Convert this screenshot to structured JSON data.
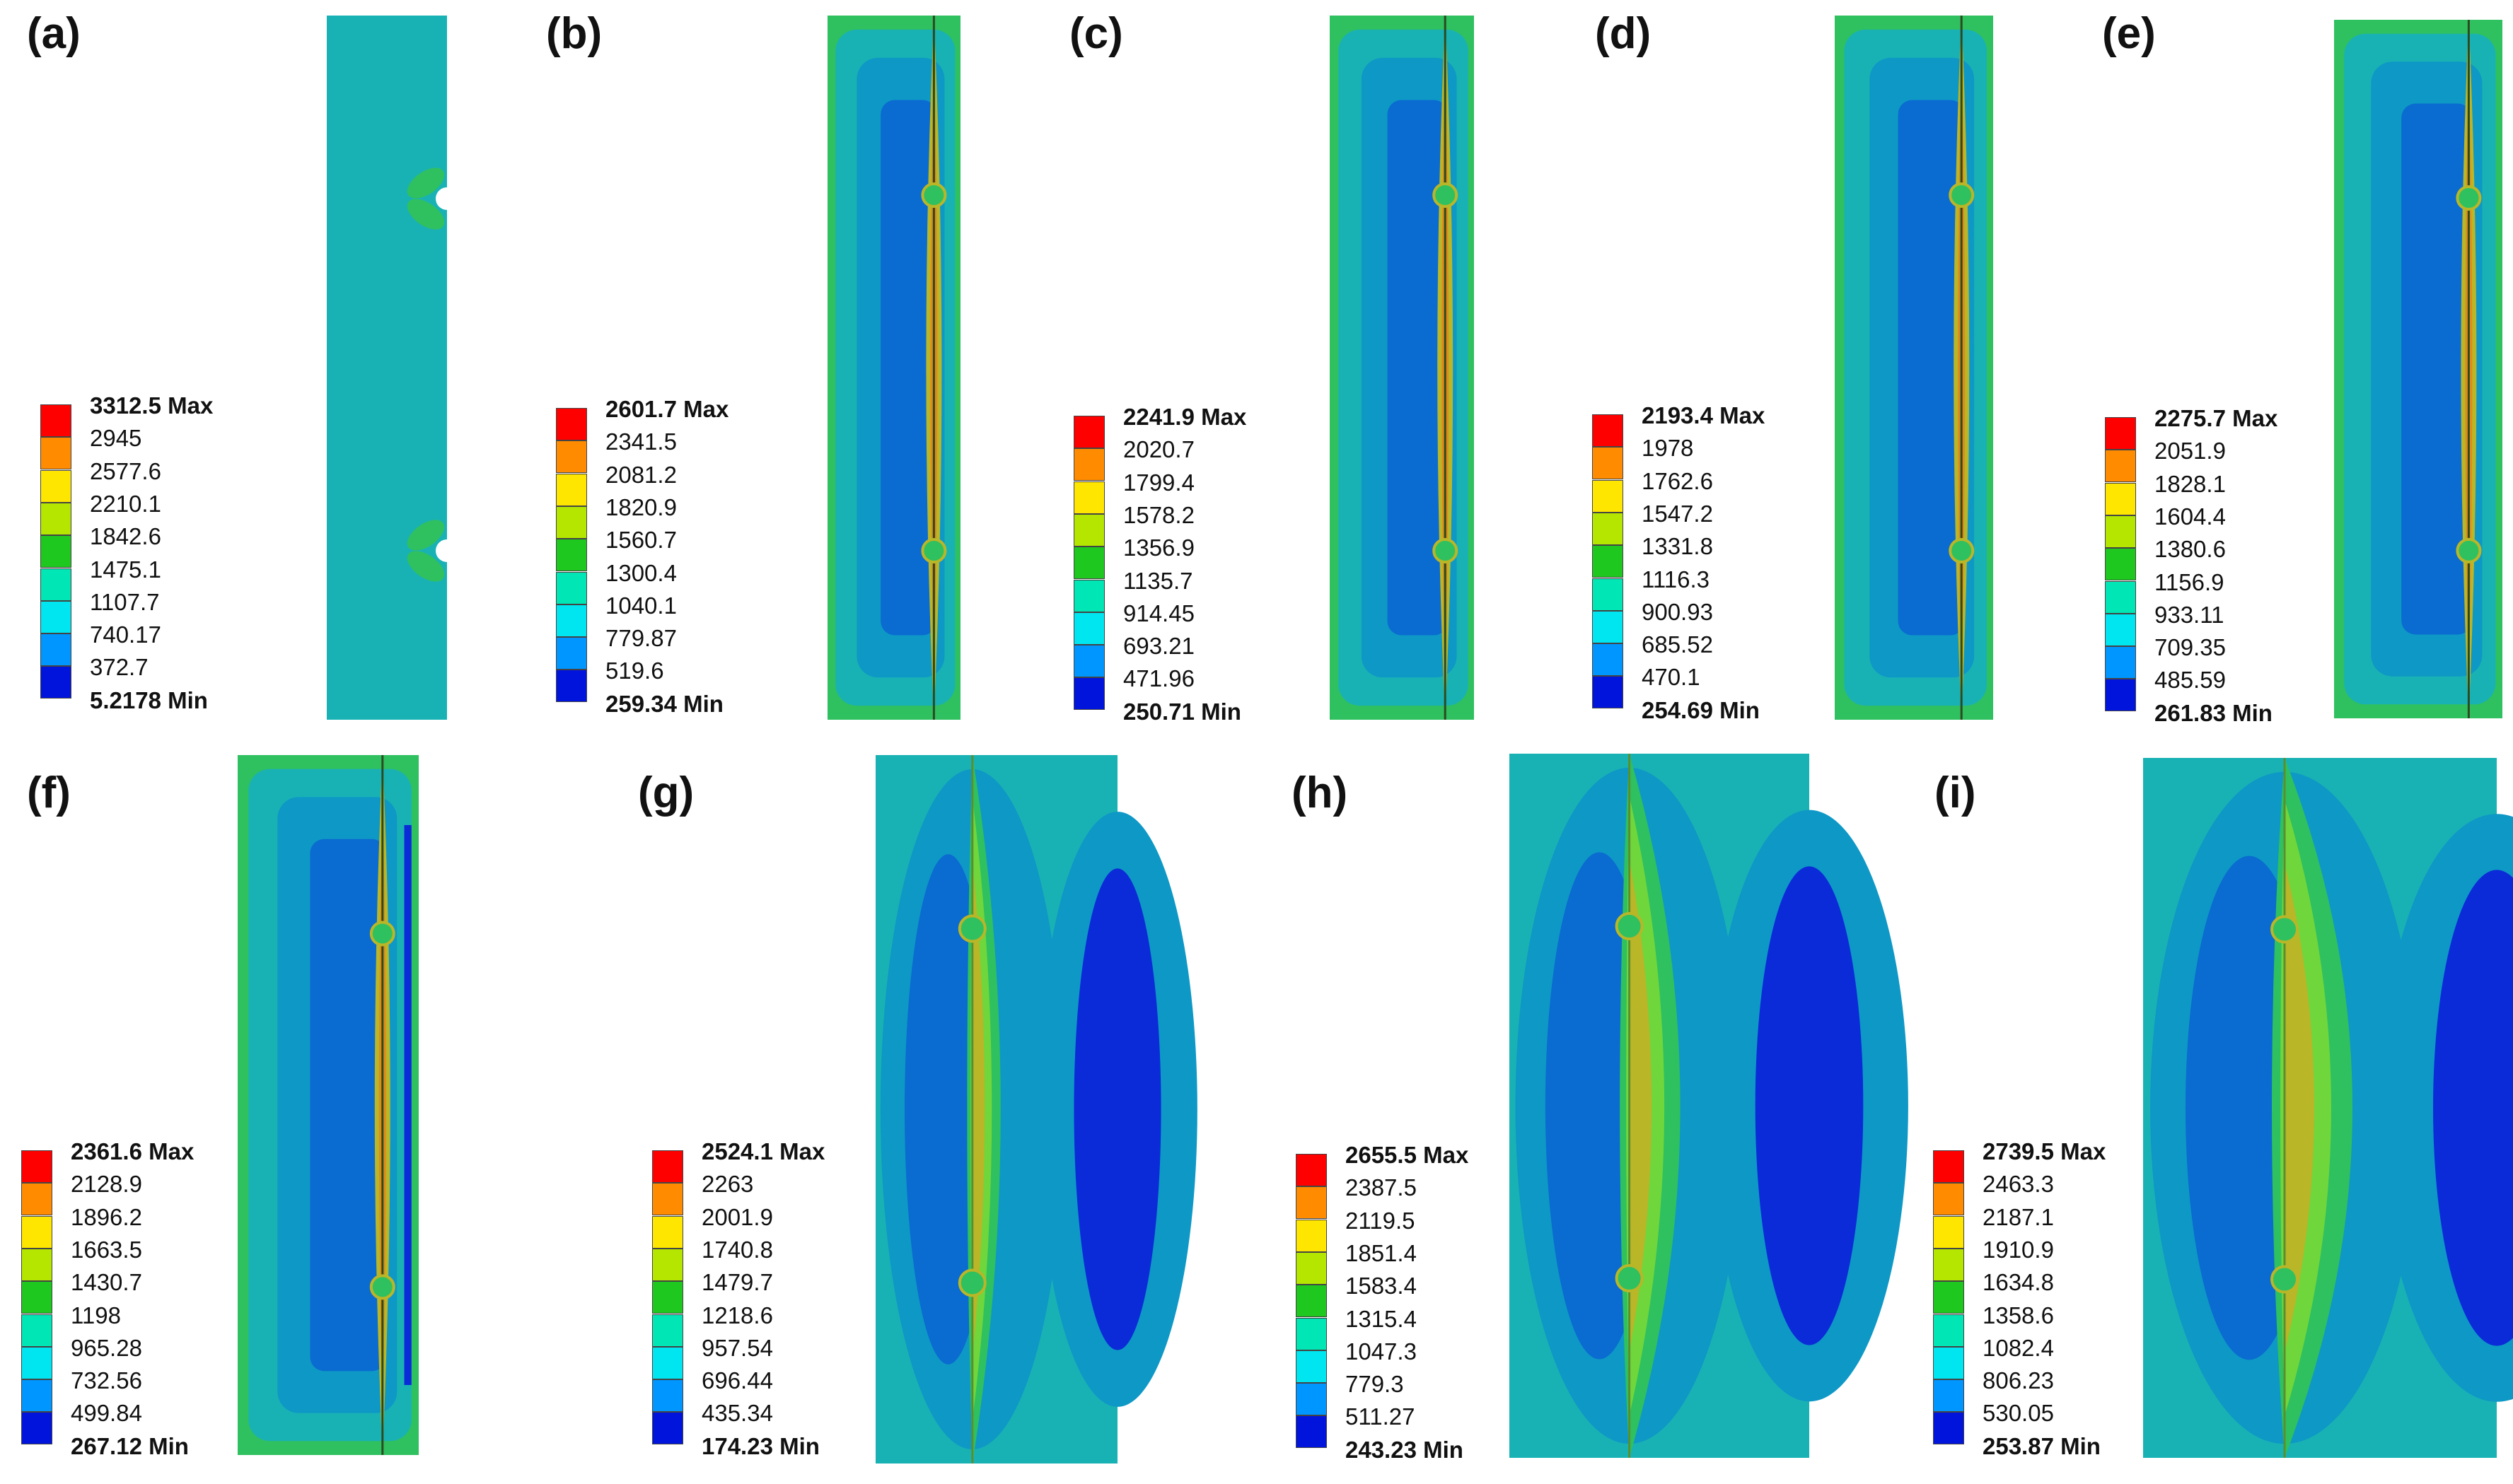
{
  "figure_title": "",
  "legend_colors": [
    "#ff0000",
    "#ff8c00",
    "#ffe600",
    "#b4e600",
    "#1ec81e",
    "#00e6b4",
    "#00e6f0",
    "#0096ff",
    "#0014dc"
  ],
  "plate_colors": {
    "base": "#19b2b4",
    "mid": "#0e98c6",
    "deep": "#0a6bd0",
    "dark": "#0b2bd8",
    "green": "#2fc060",
    "lightgreen": "#6fd63c",
    "olive": "#b9b628",
    "orange": "#e08a1a",
    "line": "#5a8f30"
  },
  "panels": [
    {
      "id": "a",
      "label": "(a)",
      "max_value": "3312.5",
      "max_suffix": "Max",
      "min_value": "5.2178",
      "min_suffix": "Min",
      "levels": [
        "2945",
        "2577.6",
        "2210.1",
        "1842.6",
        "1475.1",
        "1107.7",
        "740.17",
        "372.7"
      ]
    },
    {
      "id": "b",
      "label": "(b)",
      "max_value": "2601.7",
      "max_suffix": "Max",
      "min_value": "259.34",
      "min_suffix": "Min",
      "levels": [
        "2341.5",
        "2081.2",
        "1820.9",
        "1560.7",
        "1300.4",
        "1040.1",
        "779.87",
        "519.6"
      ]
    },
    {
      "id": "c",
      "label": "(c)",
      "max_value": "2241.9",
      "max_suffix": "Max",
      "min_value": "250.71",
      "min_suffix": "Min",
      "levels": [
        "2020.7",
        "1799.4",
        "1578.2",
        "1356.9",
        "1135.7",
        "914.45",
        "693.21",
        "471.96"
      ]
    },
    {
      "id": "d",
      "label": "(d)",
      "max_value": "2193.4",
      "max_suffix": "Max",
      "min_value": "254.69",
      "min_suffix": "Min",
      "levels": [
        "1978",
        "1762.6",
        "1547.2",
        "1331.8",
        "1116.3",
        "900.93",
        "685.52",
        "470.1"
      ]
    },
    {
      "id": "e",
      "label": "(e)",
      "max_value": "2275.7",
      "max_suffix": "Max",
      "min_value": "261.83",
      "min_suffix": "Min",
      "levels": [
        "2051.9",
        "1828.1",
        "1604.4",
        "1380.6",
        "1156.9",
        "933.11",
        "709.35",
        "485.59"
      ]
    },
    {
      "id": "f",
      "label": "(f)",
      "max_value": "2361.6",
      "max_suffix": "Max",
      "min_value": "267.12",
      "min_suffix": "Min",
      "levels": [
        "2128.9",
        "1896.2",
        "1663.5",
        "1430.7",
        "1198",
        "965.28",
        "732.56",
        "499.84"
      ]
    },
    {
      "id": "g",
      "label": "(g)",
      "max_value": "2524.1",
      "max_suffix": "Max",
      "min_value": "174.23",
      "min_suffix": "Min",
      "levels": [
        "2263",
        "2001.9",
        "1740.8",
        "1479.7",
        "1218.6",
        "957.54",
        "696.44",
        "435.34"
      ]
    },
    {
      "id": "h",
      "label": "(h)",
      "max_value": "2655.5",
      "max_suffix": "Max",
      "min_value": "243.23",
      "min_suffix": "Min",
      "levels": [
        "2387.5",
        "2119.5",
        "1851.4",
        "1583.4",
        "1315.4",
        "1047.3",
        "779.3",
        "511.27"
      ]
    },
    {
      "id": "i",
      "label": "(i)",
      "max_value": "2739.5",
      "max_suffix": "Max",
      "min_value": "253.87",
      "min_suffix": "Min",
      "levels": [
        "2463.3",
        "2187.1",
        "1910.9",
        "1634.8",
        "1358.6",
        "1082.4",
        "806.23",
        "530.05"
      ]
    }
  ]
}
